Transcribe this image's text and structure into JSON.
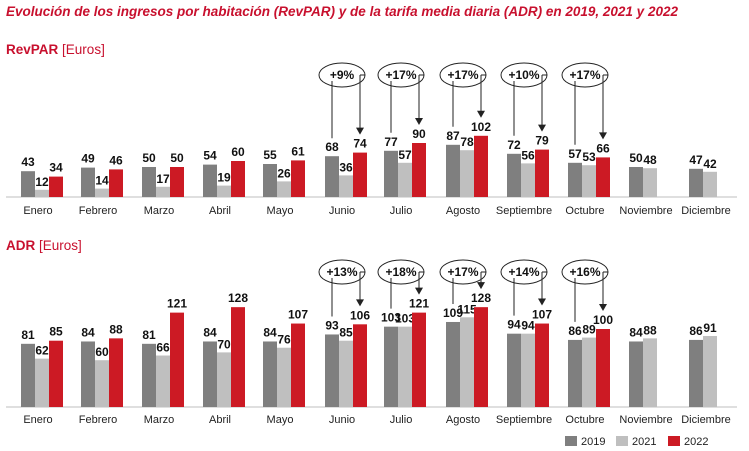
{
  "title": "Evolución de los ingresos por habitación (RevPAR) y de la tarifa media diaria (ADR) en 2019, 2021 y 2022",
  "colors": {
    "2019": "#7f7f7f",
    "2021": "#bfbfbf",
    "2022": "#cc1a24",
    "title": "#c8102e"
  },
  "legend": [
    "2019",
    "2021",
    "2022"
  ],
  "chart_data": [
    {
      "type": "bar",
      "title": "RevPAR",
      "unit": "[Euros]",
      "categories": [
        "Enero",
        "Febrero",
        "Marzo",
        "Abril",
        "Mayo",
        "Junio",
        "Julio",
        "Agosto",
        "Septiembre",
        "Octubre",
        "Noviembre",
        "Diciembre"
      ],
      "series": [
        {
          "name": "2019",
          "values": [
            43,
            49,
            50,
            54,
            55,
            68,
            77,
            87,
            72,
            57,
            50,
            47
          ]
        },
        {
          "name": "2021",
          "values": [
            12,
            14,
            17,
            19,
            26,
            36,
            57,
            78,
            56,
            53,
            48,
            42
          ]
        },
        {
          "name": "2022",
          "values": [
            34,
            46,
            50,
            60,
            61,
            74,
            90,
            102,
            79,
            66,
            null,
            null
          ]
        }
      ],
      "annotations": [
        {
          "category": "Junio",
          "text": "+9%"
        },
        {
          "category": "Julio",
          "text": "+17%"
        },
        {
          "category": "Agosto",
          "text": "+17%"
        },
        {
          "category": "Septiembre",
          "text": "+10%"
        },
        {
          "category": "Octubre",
          "text": "+17%"
        }
      ]
    },
    {
      "type": "bar",
      "title": "ADR",
      "unit": "[Euros]",
      "categories": [
        "Enero",
        "Febrero",
        "Marzo",
        "Abril",
        "Mayo",
        "Junio",
        "Julio",
        "Agosto",
        "Septiembre",
        "Octubre",
        "Noviembre",
        "Diciembre"
      ],
      "series": [
        {
          "name": "2019",
          "values": [
            81,
            84,
            81,
            84,
            84,
            93,
            103,
            109,
            94,
            86,
            84,
            86
          ]
        },
        {
          "name": "2021",
          "values": [
            62,
            60,
            66,
            70,
            76,
            85,
            103,
            115,
            94,
            89,
            88,
            91
          ]
        },
        {
          "name": "2022",
          "values": [
            85,
            88,
            121,
            128,
            107,
            106,
            121,
            128,
            107,
            100,
            null,
            null
          ]
        }
      ],
      "annotations": [
        {
          "category": "Junio",
          "text": "+13%"
        },
        {
          "category": "Julio",
          "text": "+18%"
        },
        {
          "category": "Agosto",
          "text": "+17%"
        },
        {
          "category": "Septiembre",
          "text": "+14%"
        },
        {
          "category": "Octubre",
          "text": "+16%"
        }
      ]
    }
  ]
}
